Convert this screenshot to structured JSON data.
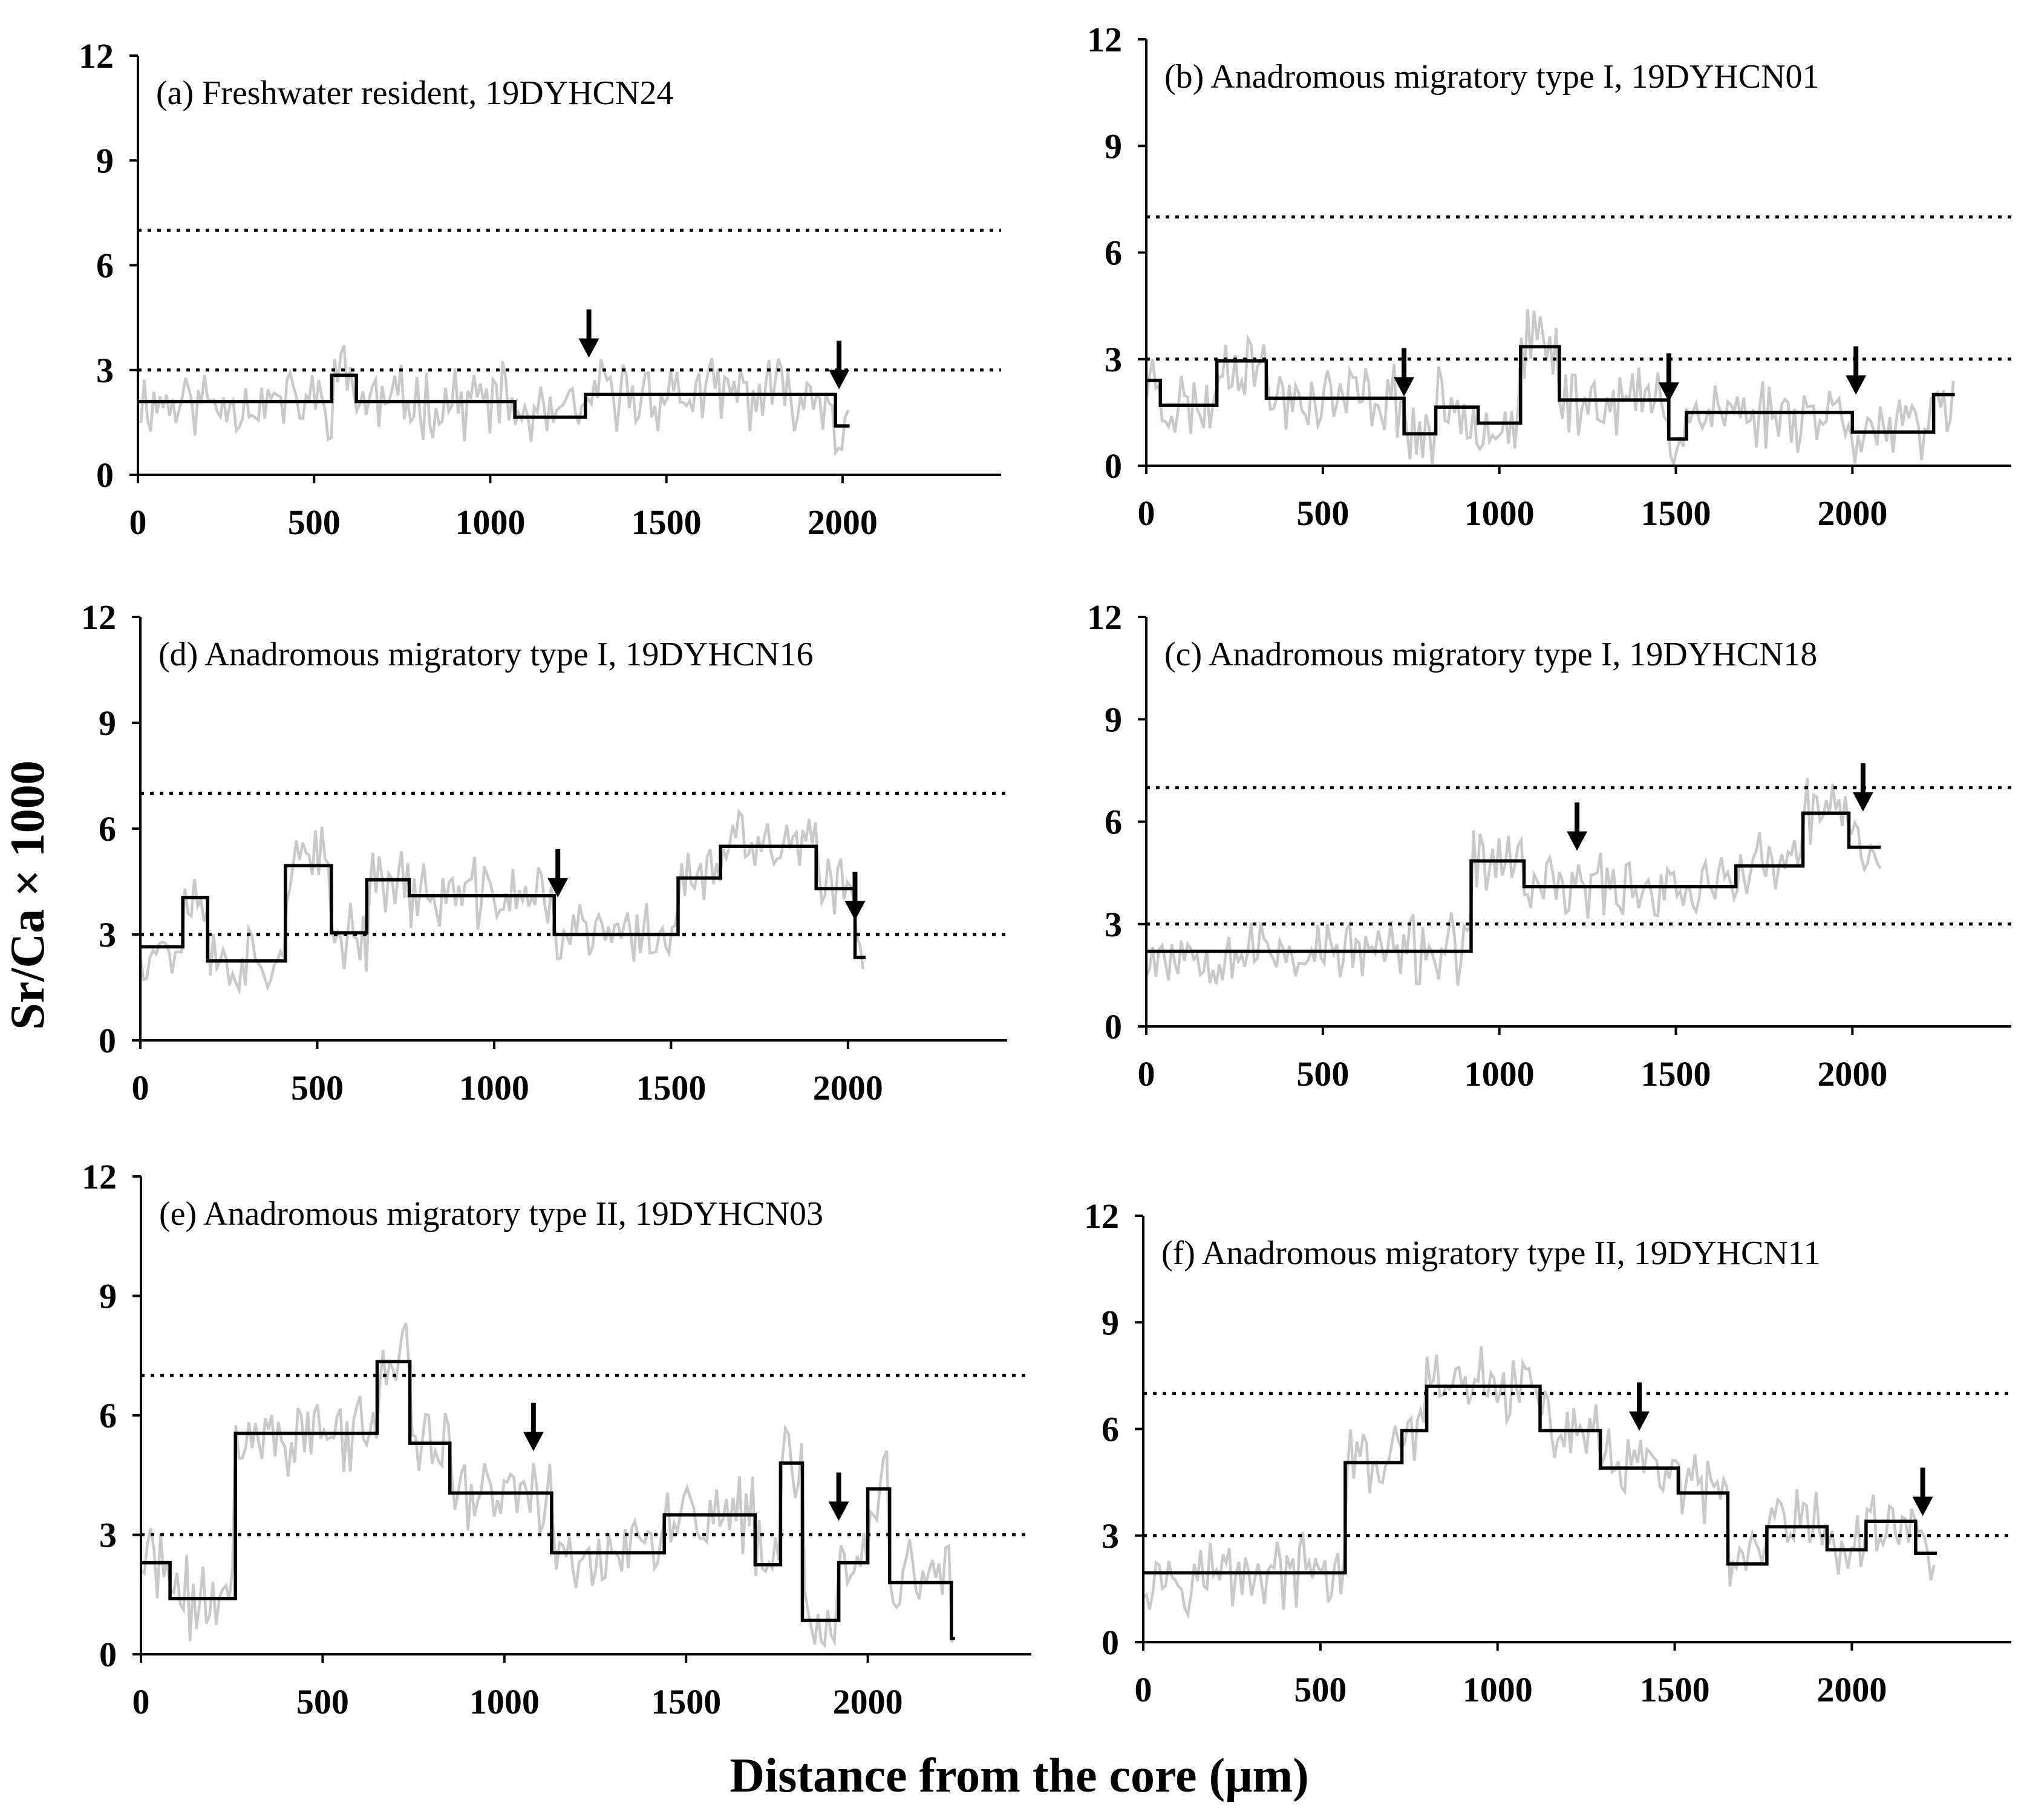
{
  "figure": {
    "y_axis_label": "Sr/Ca × 1000",
    "x_axis_label": "Distance from the core (μm)"
  },
  "chart_data": [
    {
      "id": "a",
      "type": "line",
      "title": "(a) Freshwater resident,  19DYHCN24",
      "xlim": [
        0,
        2450
      ],
      "ylim": [
        0,
        12
      ],
      "x_ticks": [
        "0",
        "500",
        "1000",
        "1500",
        "2000"
      ],
      "y_ticks": [
        "0",
        "3",
        "6",
        "9",
        "12"
      ],
      "thresholds": [
        3,
        7
      ],
      "arrows_x": [
        1280,
        1990
      ],
      "raw": {
        "x_max": 2020,
        "seed": 11
      },
      "step_series": [
        [
          0,
          2.1
        ],
        [
          550,
          2.1
        ],
        [
          550,
          2.85
        ],
        [
          620,
          2.85
        ],
        [
          620,
          2.1
        ],
        [
          1070,
          2.1
        ],
        [
          1070,
          1.65
        ],
        [
          1270,
          1.65
        ],
        [
          1270,
          2.3
        ],
        [
          1980,
          2.3
        ],
        [
          1980,
          1.4
        ],
        [
          2020,
          1.4
        ]
      ]
    },
    {
      "id": "b",
      "type": "line",
      "title": "(b) Anadromous migratory type I, 19DYHCN01",
      "xlim": [
        0,
        2450
      ],
      "ylim": [
        0,
        12
      ],
      "x_ticks": [
        "0",
        "500",
        "1000",
        "1500",
        "2000"
      ],
      "y_ticks": [
        "0",
        "3",
        "6",
        "9",
        "12"
      ],
      "thresholds": [
        3,
        7
      ],
      "arrows_x": [
        730,
        1480,
        2010
      ],
      "raw": {
        "x_max": 2290,
        "seed": 23
      },
      "step_series": [
        [
          0,
          2.4
        ],
        [
          40,
          2.4
        ],
        [
          40,
          1.7
        ],
        [
          200,
          1.7
        ],
        [
          200,
          2.95
        ],
        [
          340,
          2.95
        ],
        [
          340,
          1.9
        ],
        [
          730,
          1.9
        ],
        [
          730,
          0.9
        ],
        [
          820,
          0.9
        ],
        [
          820,
          1.65
        ],
        [
          940,
          1.65
        ],
        [
          940,
          1.2
        ],
        [
          1060,
          1.2
        ],
        [
          1060,
          3.35
        ],
        [
          1170,
          3.35
        ],
        [
          1170,
          1.85
        ],
        [
          1480,
          1.85
        ],
        [
          1480,
          0.75
        ],
        [
          1530,
          0.75
        ],
        [
          1530,
          1.5
        ],
        [
          2000,
          1.5
        ],
        [
          2000,
          0.95
        ],
        [
          2230,
          0.95
        ],
        [
          2230,
          2.0
        ],
        [
          2290,
          2.0
        ]
      ]
    },
    {
      "id": "d",
      "type": "line",
      "title": "(d) Anadromous migratory type I, 19DYHCN16",
      "xlim": [
        0,
        2450
      ],
      "ylim": [
        0,
        12
      ],
      "x_ticks": [
        "0",
        "500",
        "1000",
        "1500",
        "2000"
      ],
      "y_ticks": [
        "0",
        "3",
        "6",
        "9",
        "12"
      ],
      "thresholds": [
        3,
        7
      ],
      "arrows_x": [
        1180,
        2020
      ],
      "raw": {
        "x_max": 2050,
        "seed": 37
      },
      "step_series": [
        [
          0,
          2.65
        ],
        [
          120,
          2.65
        ],
        [
          120,
          4.05
        ],
        [
          190,
          4.05
        ],
        [
          190,
          2.25
        ],
        [
          410,
          2.25
        ],
        [
          410,
          4.95
        ],
        [
          540,
          4.95
        ],
        [
          540,
          3.05
        ],
        [
          640,
          3.05
        ],
        [
          640,
          4.55
        ],
        [
          760,
          4.55
        ],
        [
          760,
          4.1
        ],
        [
          1170,
          4.1
        ],
        [
          1170,
          3.0
        ],
        [
          1520,
          3.0
        ],
        [
          1520,
          4.6
        ],
        [
          1640,
          4.6
        ],
        [
          1640,
          5.5
        ],
        [
          1910,
          5.5
        ],
        [
          1910,
          4.3
        ],
        [
          2020,
          4.3
        ],
        [
          2020,
          2.35
        ],
        [
          2050,
          2.35
        ]
      ]
    },
    {
      "id": "c",
      "type": "line",
      "title": "(c) Anadromous migratory type I, 19DYHCN18",
      "xlim": [
        0,
        2450
      ],
      "ylim": [
        0,
        12
      ],
      "x_ticks": [
        "0",
        "500",
        "1000",
        "1500",
        "2000"
      ],
      "y_ticks": [
        "0",
        "3",
        "6",
        "9",
        "12"
      ],
      "thresholds": [
        3,
        7
      ],
      "arrows_x": [
        1220,
        2030
      ],
      "raw": {
        "x_max": 2080,
        "seed": 53
      },
      "step_series": [
        [
          0,
          2.2
        ],
        [
          920,
          2.2
        ],
        [
          920,
          4.85
        ],
        [
          1070,
          4.85
        ],
        [
          1070,
          4.1
        ],
        [
          1670,
          4.1
        ],
        [
          1670,
          4.7
        ],
        [
          1860,
          4.7
        ],
        [
          1860,
          6.25
        ],
        [
          1990,
          6.25
        ],
        [
          1990,
          5.25
        ],
        [
          2080,
          5.25
        ]
      ]
    },
    {
      "id": "e",
      "type": "line",
      "title": "(e) Anadromous migratory type II, 19DYHCN03",
      "xlim": [
        0,
        2450
      ],
      "ylim": [
        0,
        12
      ],
      "x_ticks": [
        "0",
        "500",
        "1000",
        "1500",
        "2000"
      ],
      "y_ticks": [
        "0",
        "3",
        "6",
        "9",
        "12"
      ],
      "thresholds": [
        3,
        7
      ],
      "arrows_x": [
        1080,
        1920
      ],
      "raw": {
        "x_max": 2240,
        "seed": 71
      },
      "step_series": [
        [
          0,
          2.3
        ],
        [
          80,
          2.3
        ],
        [
          80,
          1.4
        ],
        [
          260,
          1.4
        ],
        [
          260,
          5.55
        ],
        [
          650,
          5.55
        ],
        [
          650,
          7.35
        ],
        [
          740,
          7.35
        ],
        [
          740,
          5.3
        ],
        [
          850,
          5.3
        ],
        [
          850,
          4.05
        ],
        [
          1130,
          4.05
        ],
        [
          1130,
          2.55
        ],
        [
          1440,
          2.55
        ],
        [
          1440,
          3.5
        ],
        [
          1690,
          3.5
        ],
        [
          1690,
          2.25
        ],
        [
          1760,
          2.25
        ],
        [
          1760,
          4.8
        ],
        [
          1820,
          4.8
        ],
        [
          1820,
          0.85
        ],
        [
          1920,
          0.85
        ],
        [
          1920,
          2.3
        ],
        [
          2000,
          2.3
        ],
        [
          2000,
          4.15
        ],
        [
          2060,
          4.15
        ],
        [
          2060,
          1.8
        ],
        [
          2230,
          1.8
        ],
        [
          2230,
          0.4
        ],
        [
          2240,
          0.4
        ]
      ]
    },
    {
      "id": "f",
      "type": "line",
      "title": "(f) Anadromous migratory type II, 19DYHCN11",
      "xlim": [
        0,
        2450
      ],
      "ylim": [
        0,
        12
      ],
      "x_ticks": [
        "0",
        "500",
        "1000",
        "1500",
        "2000"
      ],
      "y_ticks": [
        "0",
        "3",
        "6",
        "9",
        "12"
      ],
      "thresholds": [
        3,
        7
      ],
      "arrows_x": [
        1400,
        2200
      ],
      "raw": {
        "x_max": 2240,
        "seed": 97
      },
      "step_series": [
        [
          0,
          1.95
        ],
        [
          570,
          1.95
        ],
        [
          570,
          5.05
        ],
        [
          730,
          5.05
        ],
        [
          730,
          5.95
        ],
        [
          800,
          5.95
        ],
        [
          800,
          7.2
        ],
        [
          1120,
          7.2
        ],
        [
          1120,
          5.95
        ],
        [
          1290,
          5.95
        ],
        [
          1290,
          4.9
        ],
        [
          1510,
          4.9
        ],
        [
          1510,
          4.2
        ],
        [
          1650,
          4.2
        ],
        [
          1650,
          2.2
        ],
        [
          1760,
          2.2
        ],
        [
          1760,
          3.25
        ],
        [
          1930,
          3.25
        ],
        [
          1930,
          2.6
        ],
        [
          2040,
          2.6
        ],
        [
          2040,
          3.4
        ],
        [
          2180,
          3.4
        ],
        [
          2180,
          2.5
        ],
        [
          2240,
          2.5
        ]
      ]
    }
  ]
}
